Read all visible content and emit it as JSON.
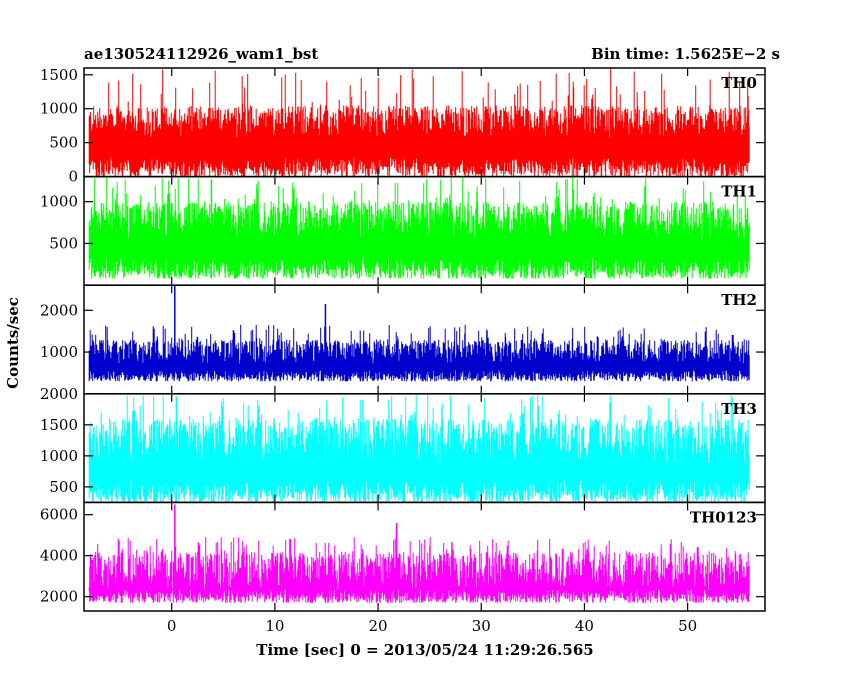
{
  "chart_data": {
    "type": "line",
    "title_left": "ae130524112926_wam1_bst",
    "title_right": "Bin time: 1.5625E−2 s",
    "xlabel": "Time [sec] 0 = 2013/05/24 11:29:26.565",
    "ylabel": "Counts/sec",
    "xlim": [
      -8.5,
      57.5
    ],
    "x_ticks": [
      0,
      10,
      20,
      30,
      40,
      50
    ],
    "x_tick_labels": [
      "0",
      "10",
      "20",
      "30",
      "40",
      "50"
    ],
    "x_data_range": [
      -8,
      56
    ],
    "bin_time_s": 0.015625,
    "panels": [
      {
        "name": "TH0",
        "color": "#ff0000",
        "ylim": [
          0,
          1600
        ],
        "y_ticks": [
          0,
          500,
          1000,
          1500
        ],
        "y_tick_labels": [
          "0",
          "500",
          "1000",
          "1500"
        ],
        "typical_low": 0,
        "typical_high": 1050,
        "peak_high": 1600,
        "spikes": []
      },
      {
        "name": "TH1",
        "color": "#00ff00",
        "ylim": [
          0,
          1300
        ],
        "y_ticks": [
          500,
          1000
        ],
        "y_tick_labels": [
          "500",
          "1000"
        ],
        "typical_low": 80,
        "typical_high": 1000,
        "peak_high": 1300,
        "spikes": []
      },
      {
        "name": "TH2",
        "color": "#0000cc",
        "ylim": [
          0,
          2600
        ],
        "y_ticks": [
          1000,
          2000
        ],
        "y_tick_labels": [
          "1000",
          "2000"
        ],
        "typical_low": 300,
        "typical_high": 1300,
        "peak_high": 1650,
        "spikes": [
          {
            "x": 0.3,
            "y": 2600
          },
          {
            "x": 14.9,
            "y": 2150
          }
        ]
      },
      {
        "name": "TH3",
        "color": "#00ffff",
        "ylim": [
          250,
          2000
        ],
        "y_ticks": [
          500,
          1000,
          1500,
          2000
        ],
        "y_tick_labels": [
          "500",
          "1000",
          "1500",
          "2000"
        ],
        "typical_low": 250,
        "typical_high": 1600,
        "peak_high": 2000,
        "spikes": []
      },
      {
        "name": "TH0123",
        "color": "#ff00ff",
        "ylim": [
          1300,
          6600
        ],
        "y_ticks": [
          2000,
          4000,
          6000
        ],
        "y_tick_labels": [
          "2000",
          "4000",
          "6000"
        ],
        "typical_low": 1700,
        "typical_high": 4200,
        "peak_high": 4900,
        "spikes": [
          {
            "x": 0.3,
            "y": 6500
          },
          {
            "x": 21.8,
            "y": 5600
          }
        ]
      }
    ]
  }
}
